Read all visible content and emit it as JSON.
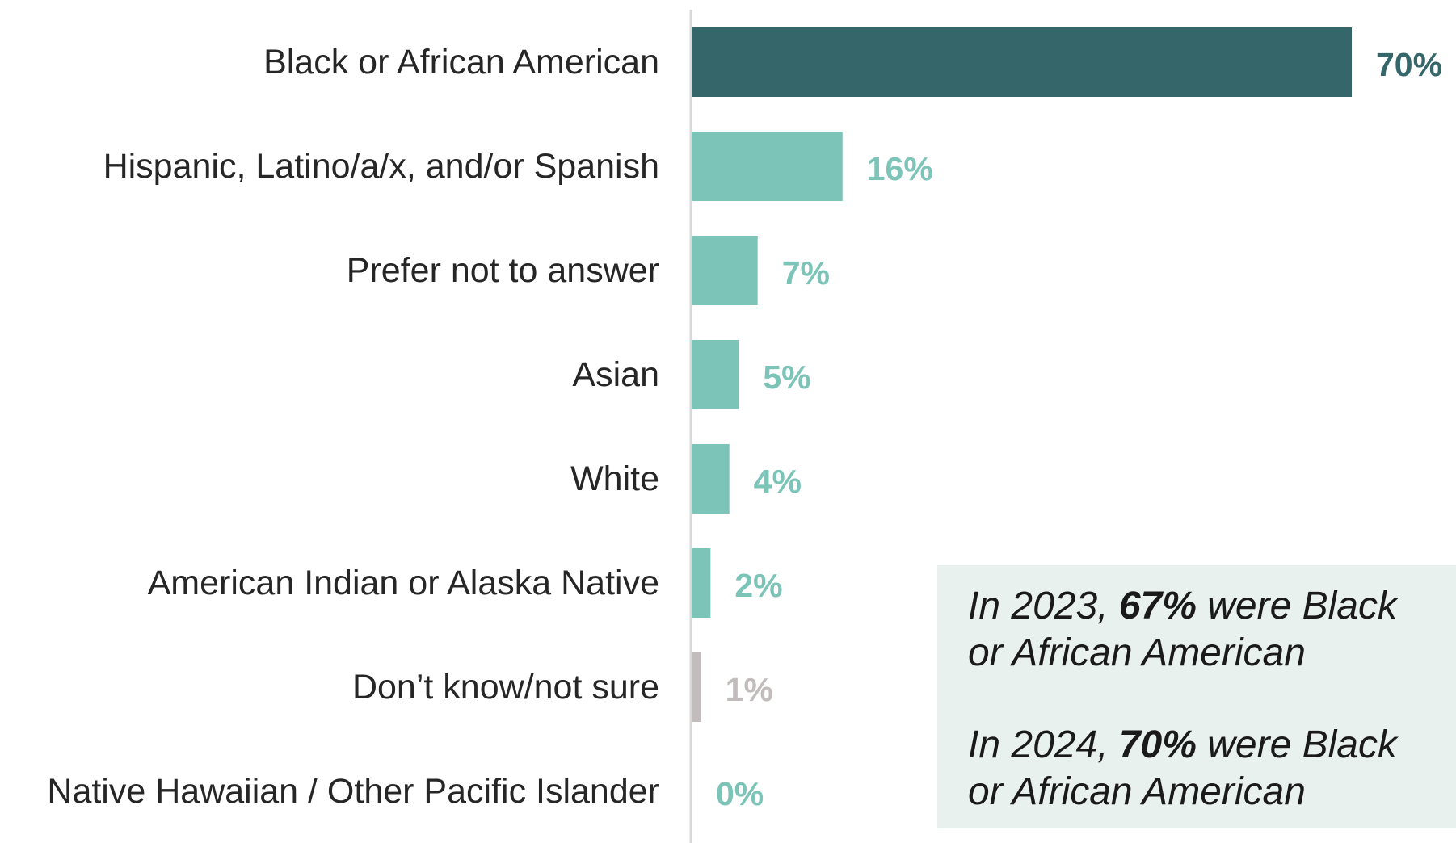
{
  "chart_data": {
    "type": "bar",
    "orientation": "horizontal",
    "categories": [
      "Black or African American",
      "Hispanic, Latino/a/x, and/or Spanish",
      "Prefer not to answer",
      "Asian",
      "White",
      "American Indian or Alaska Native",
      "Don’t know/not sure",
      "Native Hawaiian / Other Pacific Islander"
    ],
    "values": [
      70,
      16,
      7,
      5,
      4,
      2,
      1,
      0
    ],
    "value_labels": [
      "70%",
      "16%",
      "7%",
      "5%",
      "4%",
      "2%",
      "1%",
      "0%"
    ],
    "bar_colors": [
      "#35676a",
      "#7cc4b8",
      "#7cc4b8",
      "#7cc4b8",
      "#7cc4b8",
      "#7cc4b8",
      "#c2bcbc",
      "#7cc4b8"
    ],
    "label_colors": [
      "#35676a",
      "#7cc4b8",
      "#7cc4b8",
      "#7cc4b8",
      "#7cc4b8",
      "#7cc4b8",
      "#c2bcbc",
      "#7cc4b8"
    ],
    "xlim": [
      0,
      70
    ],
    "grid": false,
    "legend": "none",
    "title": "",
    "xlabel": "",
    "ylabel": ""
  },
  "callout": {
    "line1_pre": "In 2023, ",
    "line1_bold": "67%",
    "line1_post": " were Black or African American",
    "line2_pre": "In 2024, ",
    "line2_bold": "70%",
    "line2_post": " were Black or African American",
    "background": "#e9f1ef"
  }
}
